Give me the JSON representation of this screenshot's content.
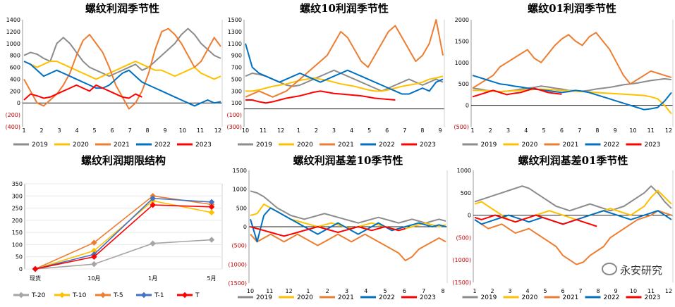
{
  "colors": {
    "2019": "#8c8c8c",
    "2020": "#ffc000",
    "2021": "#ed7d31",
    "2022": "#0070c0",
    "2023": "#ff0000",
    "T-20": "#a5a5a5",
    "T-10": "#ffc000",
    "T-5": "#ed7d31",
    "T-1": "#4472c4",
    "T": "#ff0000"
  },
  "watermark": "永安研究",
  "chart_data": [
    {
      "id": "p1",
      "type": "line",
      "title": "螺纹利润季节性",
      "x_ticks": [
        "1",
        "2",
        "3",
        "4",
        "5",
        "6",
        "7",
        "8",
        "9",
        "10",
        "11",
        "12"
      ],
      "y_ticks": [
        "1400",
        "1200",
        "1000",
        "800",
        "600",
        "400",
        "200",
        "0",
        "(200)",
        "(400)"
      ],
      "ylim": [
        -400,
        1400
      ],
      "legend": [
        "2019",
        "2020",
        "2021",
        "2022",
        "2023"
      ],
      "series": [
        {
          "name": "2019",
          "values": [
            800,
            850,
            820,
            750,
            700,
            1000,
            1100,
            1000,
            850,
            700,
            600,
            550,
            500,
            450,
            500,
            550,
            600,
            650,
            550,
            600,
            700,
            800,
            900,
            1000,
            1150,
            1250,
            1150,
            1000,
            900,
            800,
            750
          ]
        },
        {
          "name": "2020",
          "values": [
            700,
            650,
            600,
            650,
            700,
            700,
            650,
            600,
            550,
            500,
            450,
            400,
            450,
            500,
            550,
            600,
            650,
            700,
            650,
            600,
            550,
            550,
            500,
            450,
            500,
            550,
            600,
            500,
            450,
            400,
            450
          ]
        },
        {
          "name": "2021",
          "values": [
            400,
            200,
            0,
            -50,
            50,
            150,
            300,
            500,
            800,
            1050,
            1150,
            1000,
            850,
            600,
            300,
            100,
            -100,
            0,
            200,
            500,
            900,
            1200,
            1250,
            1150,
            1000,
            800,
            600,
            700,
            900,
            1100,
            950
          ]
        },
        {
          "name": "2022",
          "values": [
            700,
            650,
            550,
            450,
            500,
            550,
            500,
            450,
            400,
            350,
            300,
            250,
            250,
            300,
            400,
            500,
            550,
            450,
            350,
            300,
            250,
            200,
            150,
            100,
            50,
            0,
            -50,
            0,
            50,
            0,
            20
          ]
        },
        {
          "name": "2023",
          "values": [
            50,
            150,
            120,
            80,
            100,
            150,
            200,
            250,
            300,
            250,
            200,
            300,
            250,
            200,
            150,
            100,
            80,
            150,
            100
          ]
        }
      ]
    },
    {
      "id": "p2",
      "type": "line",
      "title": "螺纹10利润季节性",
      "x_ticks": [
        "10",
        "11",
        "12",
        "1",
        "2",
        "3",
        "4",
        "5",
        "6",
        "7",
        "8",
        "9"
      ],
      "y_ticks": [
        "1500",
        "1300",
        "1100",
        "900",
        "700",
        "500",
        "300",
        "100",
        "(100)",
        "(300)"
      ],
      "ylim": [
        -300,
        1500
      ],
      "legend": [
        "2019",
        "2020",
        "2021",
        "2022",
        "2023"
      ],
      "series": [
        {
          "name": "2019",
          "values": [
            550,
            600,
            580,
            550,
            500,
            450,
            400,
            380,
            400,
            450,
            500,
            550,
            600,
            650,
            600,
            550,
            500,
            450,
            400,
            350,
            300,
            350,
            400,
            450,
            500,
            450,
            400,
            450,
            500,
            450
          ]
        },
        {
          "name": "2020",
          "values": [
            300,
            300,
            320,
            350,
            380,
            400,
            420,
            450,
            480,
            500,
            520,
            500,
            480,
            450,
            420,
            400,
            380,
            350,
            320,
            300,
            300,
            320,
            350,
            380,
            400,
            420,
            450,
            500,
            520,
            550
          ]
        },
        {
          "name": "2021",
          "values": [
            200,
            250,
            300,
            250,
            200,
            250,
            300,
            400,
            500,
            600,
            700,
            800,
            900,
            1100,
            1300,
            1200,
            1000,
            800,
            700,
            900,
            1100,
            1300,
            1400,
            1200,
            1000,
            800,
            900,
            1100,
            1500,
            900
          ]
        },
        {
          "name": "2022",
          "values": [
            1100,
            700,
            600,
            550,
            500,
            450,
            500,
            550,
            600,
            550,
            500,
            450,
            500,
            550,
            600,
            650,
            600,
            550,
            500,
            450,
            400,
            350,
            300,
            250,
            250,
            300,
            350,
            300,
            450,
            500
          ]
        },
        {
          "name": "2023",
          "values": [
            150,
            150,
            120,
            100,
            120,
            150,
            180,
            200,
            220,
            250,
            280,
            300,
            280,
            260,
            250,
            240,
            230,
            220,
            200,
            180,
            170,
            160,
            150
          ]
        }
      ]
    },
    {
      "id": "p3",
      "type": "line",
      "title": "螺纹01利润季节性",
      "x_ticks": [
        "1",
        "2",
        "3",
        "4",
        "5",
        "6",
        "7",
        "8",
        "9",
        "10",
        "11",
        "12"
      ],
      "y_ticks": [
        "2000",
        "1500",
        "1000",
        "500",
        "0",
        "(500)"
      ],
      "ylim": [
        -500,
        2000
      ],
      "legend": [
        "2019",
        "2020",
        "2021",
        "2022",
        "2023"
      ],
      "series": [
        {
          "name": "2019",
          "values": [
            400,
            380,
            350,
            330,
            320,
            330,
            350,
            380,
            400,
            420,
            450,
            430,
            400,
            380,
            350,
            340,
            330,
            350,
            380,
            400,
            420,
            450,
            480,
            500,
            520,
            550,
            580,
            600,
            620,
            600
          ]
        },
        {
          "name": "2020",
          "values": [
            350,
            350,
            340,
            330,
            320,
            330,
            340,
            350,
            360,
            370,
            380,
            370,
            360,
            350,
            340,
            330,
            320,
            310,
            300,
            290,
            280,
            270,
            260,
            250,
            240,
            230,
            200,
            150,
            0,
            -200
          ]
        },
        {
          "name": "2021",
          "values": [
            400,
            500,
            600,
            700,
            900,
            1000,
            1100,
            1200,
            1300,
            1100,
            1000,
            1200,
            1400,
            1550,
            1650,
            1500,
            1400,
            1600,
            1700,
            1500,
            1300,
            1000,
            700,
            500,
            600,
            700,
            800,
            750,
            700,
            650
          ]
        },
        {
          "name": "2022",
          "values": [
            700,
            650,
            600,
            550,
            500,
            480,
            450,
            430,
            400,
            380,
            360,
            340,
            320,
            300,
            320,
            350,
            330,
            300,
            250,
            200,
            150,
            100,
            50,
            0,
            -50,
            -100,
            -80,
            -50,
            100,
            300
          ]
        },
        {
          "name": "2023",
          "values": [
            200,
            250,
            300,
            350,
            300,
            250,
            280,
            300,
            350,
            400,
            350,
            300,
            280,
            260
          ]
        }
      ]
    },
    {
      "id": "p4",
      "type": "line",
      "title": "螺纹利润期限结构",
      "categories": [
        "现货",
        "10月",
        "1月",
        "5月"
      ],
      "y_ticks": [
        "350",
        "300",
        "250",
        "200",
        "150",
        "100",
        "50",
        "0"
      ],
      "ylim": [
        0,
        350
      ],
      "legend": [
        "T-20",
        "T-10",
        "T-5",
        "T-1",
        "T"
      ],
      "series": [
        {
          "name": "T-20",
          "values": [
            0,
            20,
            105,
            120
          ]
        },
        {
          "name": "T-10",
          "values": [
            0,
            75,
            280,
            232
          ]
        },
        {
          "name": "T-5",
          "values": [
            0,
            108,
            300,
            265
          ]
        },
        {
          "name": "T-1",
          "values": [
            0,
            60,
            290,
            275
          ]
        },
        {
          "name": "T",
          "values": [
            0,
            50,
            263,
            255
          ]
        }
      ]
    },
    {
      "id": "p5",
      "type": "line",
      "title": "螺纹利润基差10季节性",
      "x_ticks": [
        "10",
        "11",
        "12",
        "1",
        "2",
        "3",
        "4",
        "5",
        "6",
        "7",
        "8"
      ],
      "y_ticks": [
        "1500",
        "1000",
        "500",
        "0",
        "(500)",
        "(1000)",
        "(1500)"
      ],
      "ylim": [
        -1500,
        1500
      ],
      "legend": [
        "2019",
        "2020",
        "2021",
        "2022",
        "2023"
      ],
      "series": [
        {
          "name": "2019",
          "values": [
            950,
            900,
            800,
            650,
            500,
            400,
            300,
            250,
            200,
            250,
            300,
            350,
            300,
            250,
            200,
            150,
            100,
            150,
            200,
            250,
            200,
            150,
            100,
            150,
            200,
            150,
            100,
            150,
            200,
            150
          ]
        },
        {
          "name": "2020",
          "values": [
            300,
            350,
            600,
            500,
            400,
            300,
            200,
            150,
            100,
            50,
            0,
            50,
            100,
            50,
            0,
            -50,
            0,
            50,
            100,
            50,
            0,
            -50,
            -100,
            -50,
            0,
            50,
            100,
            50,
            0,
            50
          ]
        },
        {
          "name": "2021",
          "values": [
            -200,
            -400,
            -300,
            -200,
            -300,
            -400,
            -300,
            -200,
            -300,
            -400,
            -500,
            -400,
            -300,
            -200,
            -300,
            -400,
            -300,
            -200,
            -300,
            -400,
            -500,
            -600,
            -700,
            -900,
            -800,
            -600,
            -500,
            -400,
            -300,
            -400
          ]
        },
        {
          "name": "2022",
          "values": [
            200,
            -400,
            300,
            500,
            400,
            300,
            200,
            100,
            0,
            -100,
            -200,
            -100,
            0,
            100,
            0,
            -100,
            -200,
            -100,
            0,
            100,
            0,
            -100,
            -50,
            0,
            50,
            100,
            50,
            0,
            50,
            0
          ]
        },
        {
          "name": "2023",
          "values": [
            0,
            -50,
            -100,
            -150,
            -200,
            -250,
            -200,
            -150,
            -100,
            -50,
            0,
            -50,
            -100,
            -150,
            -100,
            -50,
            0,
            -50,
            -100,
            -50,
            0,
            -50,
            -100,
            -50
          ]
        }
      ]
    },
    {
      "id": "p6",
      "type": "line",
      "title": "螺纹利润基差01季节性",
      "x_ticks": [
        "1",
        "2",
        "3",
        "4",
        "5",
        "6",
        "7",
        "8",
        "9",
        "10",
        "11",
        "12"
      ],
      "y_ticks": [
        "1000",
        "500",
        "0",
        "(500)",
        "(1000)",
        "(1500)"
      ],
      "ylim": [
        -1500,
        1000
      ],
      "legend": [
        "2019",
        "2020",
        "2021",
        "2022",
        "2023"
      ],
      "series": [
        {
          "name": "2019",
          "values": [
            300,
            350,
            400,
            450,
            500,
            550,
            600,
            650,
            600,
            500,
            400,
            300,
            200,
            150,
            100,
            150,
            200,
            250,
            200,
            150,
            100,
            150,
            200,
            300,
            400,
            500,
            650,
            500,
            300,
            150
          ]
        },
        {
          "name": "2020",
          "values": [
            250,
            300,
            200,
            100,
            0,
            -100,
            -150,
            -100,
            -50,
            0,
            50,
            100,
            50,
            0,
            -50,
            -100,
            -50,
            0,
            50,
            100,
            150,
            100,
            50,
            0,
            100,
            200,
            400,
            550,
            400,
            250
          ]
        },
        {
          "name": "2021",
          "values": [
            -100,
            -200,
            -300,
            -250,
            -200,
            -300,
            -400,
            -350,
            -300,
            -400,
            -500,
            -600,
            -700,
            -900,
            -1000,
            -1100,
            -1050,
            -900,
            -800,
            -700,
            -500,
            -400,
            -300,
            -200,
            -100,
            -50,
            0,
            100,
            50,
            0
          ]
        },
        {
          "name": "2022",
          "values": [
            -100,
            -200,
            -150,
            -100,
            -50,
            0,
            -50,
            -100,
            -150,
            -100,
            -50,
            -100,
            -150,
            -200,
            -150,
            -100,
            -50,
            0,
            50,
            100,
            50,
            0,
            -50,
            -100,
            -50,
            0,
            50,
            100,
            0,
            -100
          ]
        },
        {
          "name": "2023",
          "values": [
            -50,
            -100,
            -50,
            0,
            -50,
            -100,
            -150,
            -100,
            -50,
            0,
            -50,
            -100,
            -150,
            -200,
            -150,
            -100,
            -150,
            -200,
            -250
          ]
        }
      ]
    }
  ]
}
